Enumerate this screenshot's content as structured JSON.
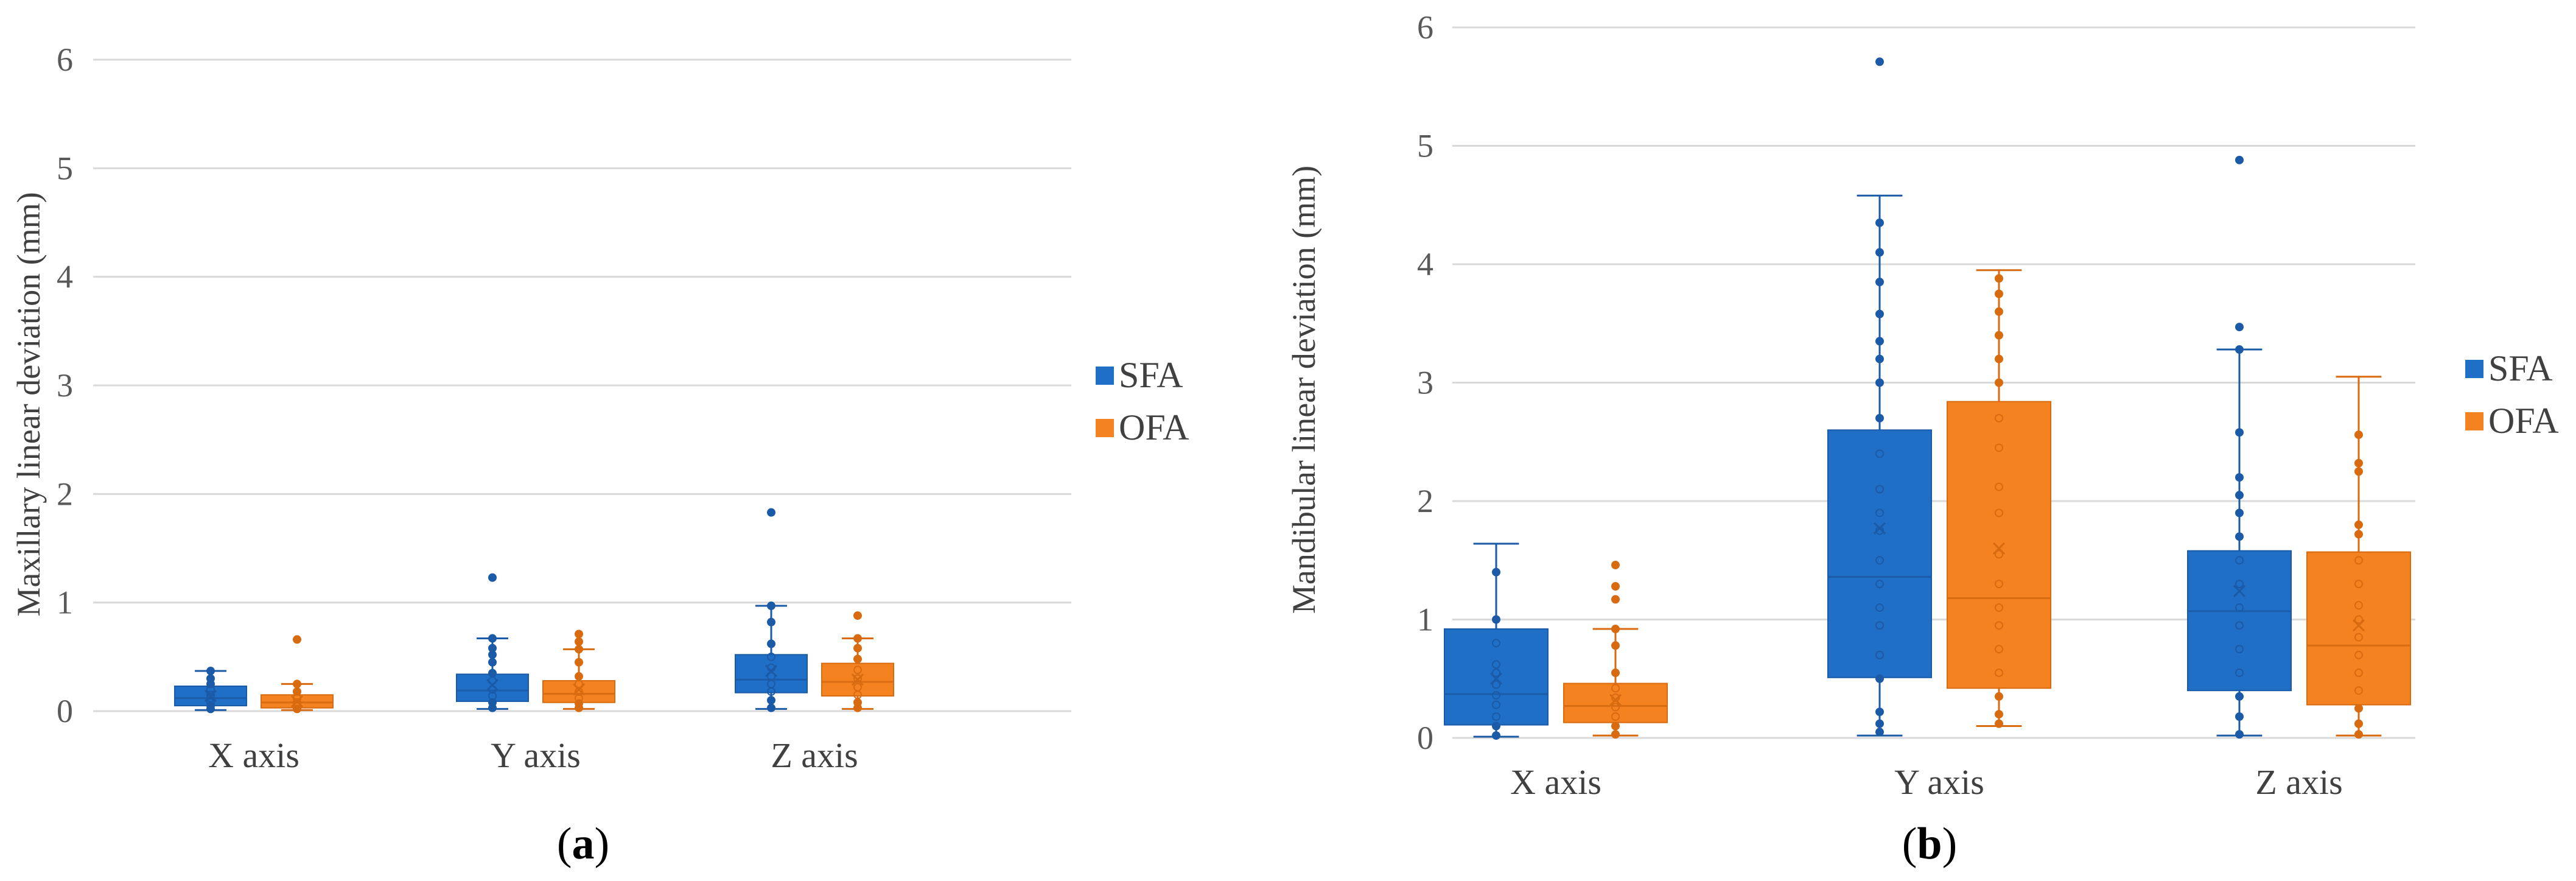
{
  "chart_data": [
    {
      "type": "box",
      "panel": "a",
      "title": "",
      "ylabel": "Maxillary linear deviation (mm)",
      "xlabel": "",
      "ylim": [
        0,
        6
      ],
      "yticks": [
        "0",
        "1",
        "2",
        "3",
        "4",
        "5",
        "6"
      ],
      "categories": [
        "X axis",
        "Y axis",
        "Z axis"
      ],
      "legend_position": "right",
      "series": [
        {
          "name": "SFA",
          "color": "#1f6fc7",
          "stroke": "#1a5aa6",
          "boxes": [
            {
              "min": 0.01,
              "q1": 0.05,
              "median": 0.12,
              "q3": 0.23,
              "max": 0.37,
              "mean": 0.14,
              "outliers": [],
              "points": [
                0.02,
                0.05,
                0.08,
                0.12,
                0.15,
                0.2,
                0.25,
                0.3,
                0.37
              ]
            },
            {
              "min": 0.02,
              "q1": 0.09,
              "median": 0.19,
              "q3": 0.34,
              "max": 0.67,
              "mean": 0.24,
              "outliers": [
                1.23
              ],
              "points": [
                0.03,
                0.08,
                0.14,
                0.2,
                0.28,
                0.35,
                0.45,
                0.52,
                0.58,
                0.67
              ]
            },
            {
              "min": 0.02,
              "q1": 0.17,
              "median": 0.29,
              "q3": 0.52,
              "max": 0.97,
              "mean": 0.37,
              "outliers": [
                1.83
              ],
              "points": [
                0.03,
                0.1,
                0.18,
                0.25,
                0.32,
                0.4,
                0.5,
                0.62,
                0.82,
                0.97
              ]
            }
          ]
        },
        {
          "name": "OFA",
          "color": "#f58220",
          "stroke": "#d86a10",
          "boxes": [
            {
              "min": 0.01,
              "q1": 0.03,
              "median": 0.08,
              "q3": 0.15,
              "max": 0.25,
              "mean": 0.09,
              "outliers": [
                0.66
              ],
              "points": [
                0.02,
                0.05,
                0.08,
                0.12,
                0.18,
                0.25
              ]
            },
            {
              "min": 0.02,
              "q1": 0.08,
              "median": 0.16,
              "q3": 0.28,
              "max": 0.57,
              "mean": 0.2,
              "outliers": [
                0.71
              ],
              "points": [
                0.03,
                0.07,
                0.12,
                0.18,
                0.25,
                0.32,
                0.45,
                0.57,
                0.64
              ]
            },
            {
              "min": 0.02,
              "q1": 0.14,
              "median": 0.27,
              "q3": 0.44,
              "max": 0.67,
              "mean": 0.29,
              "outliers": [
                0.88
              ],
              "points": [
                0.03,
                0.08,
                0.15,
                0.22,
                0.3,
                0.38,
                0.48,
                0.58,
                0.67
              ]
            }
          ]
        }
      ]
    },
    {
      "type": "box",
      "panel": "b",
      "title": "",
      "ylabel": "Mandibular linear deviation (mm)",
      "xlabel": "",
      "ylim": [
        0,
        6
      ],
      "yticks": [
        "0",
        "1",
        "2",
        "3",
        "4",
        "5",
        "6"
      ],
      "categories": [
        "X axis",
        "Y axis",
        "Z axis"
      ],
      "legend_position": "right",
      "series": [
        {
          "name": "SFA",
          "color": "#1f6fc7",
          "stroke": "#1a5aa6",
          "boxes": [
            {
              "min": 0.01,
              "q1": 0.11,
              "median": 0.37,
              "q3": 0.92,
              "max": 1.64,
              "mean": 0.5,
              "outliers": [],
              "points": [
                0.02,
                0.1,
                0.18,
                0.28,
                0.36,
                0.45,
                0.55,
                0.62,
                0.8,
                1.0,
                1.4
              ]
            },
            {
              "min": 0.02,
              "q1": 0.51,
              "median": 1.36,
              "q3": 2.6,
              "max": 4.58,
              "mean": 1.77,
              "outliers": [
                5.71
              ],
              "points": [
                0.05,
                0.12,
                0.22,
                0.5,
                0.7,
                0.95,
                1.1,
                1.3,
                1.5,
                1.75,
                1.9,
                2.1,
                2.4,
                2.7,
                3.0,
                3.2,
                3.35,
                3.58,
                3.85,
                4.1,
                4.35
              ]
            },
            {
              "min": 0.02,
              "q1": 0.4,
              "median": 1.07,
              "q3": 1.58,
              "max": 3.28,
              "mean": 1.24,
              "outliers": [
                3.47,
                4.88
              ],
              "points": [
                0.03,
                0.18,
                0.35,
                0.55,
                0.75,
                0.95,
                1.1,
                1.3,
                1.5,
                1.7,
                1.9,
                2.05,
                2.2,
                2.58,
                3.28
              ]
            }
          ]
        },
        {
          "name": "OFA",
          "color": "#f58220",
          "stroke": "#d86a10",
          "boxes": [
            {
              "min": 0.02,
              "q1": 0.13,
              "median": 0.27,
              "q3": 0.46,
              "max": 0.92,
              "mean": 0.32,
              "outliers": [
                1.17,
                1.28,
                1.46
              ],
              "points": [
                0.03,
                0.1,
                0.18,
                0.26,
                0.34,
                0.42,
                0.55,
                0.78,
                0.92
              ]
            },
            {
              "min": 0.1,
              "q1": 0.42,
              "median": 1.18,
              "q3": 2.84,
              "max": 3.95,
              "mean": 1.6,
              "outliers": [],
              "points": [
                0.12,
                0.2,
                0.35,
                0.55,
                0.75,
                0.95,
                1.1,
                1.3,
                1.55,
                1.9,
                2.12,
                2.45,
                2.7,
                3.0,
                3.2,
                3.4,
                3.6,
                3.75,
                3.88
              ]
            },
            {
              "min": 0.02,
              "q1": 0.28,
              "median": 0.78,
              "q3": 1.57,
              "max": 3.05,
              "mean": 0.95,
              "outliers": [],
              "points": [
                0.03,
                0.12,
                0.25,
                0.4,
                0.55,
                0.7,
                0.85,
                1.0,
                1.12,
                1.3,
                1.5,
                1.72,
                1.8,
                2.25,
                2.32,
                2.56
              ]
            }
          ]
        }
      ]
    }
  ],
  "panel_labels": [
    {
      "open": "(",
      "letter": "a",
      "close": ")"
    },
    {
      "open": "(",
      "letter": "b",
      "close": ")"
    }
  ]
}
